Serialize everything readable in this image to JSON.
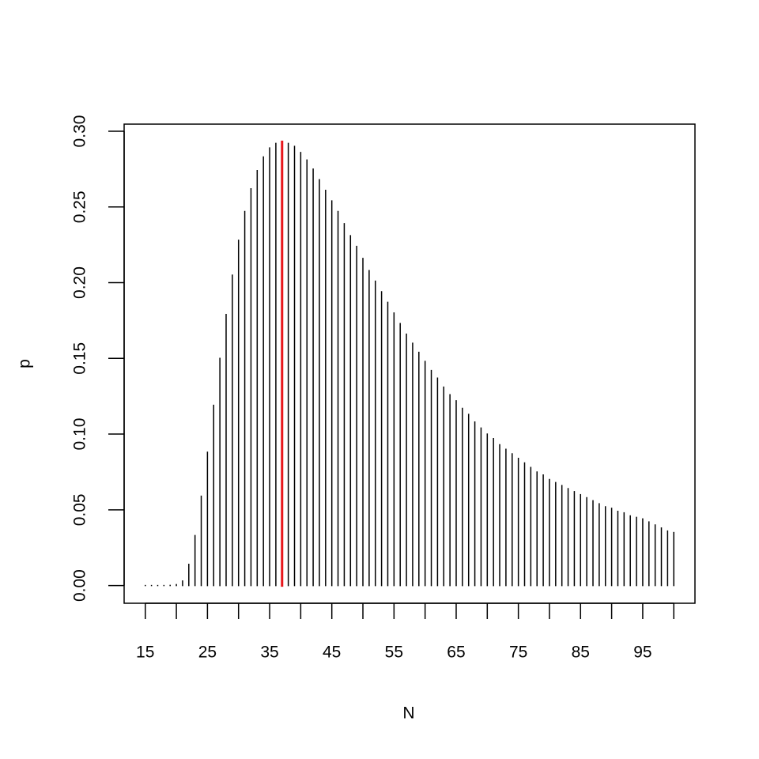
{
  "chart_data": {
    "type": "spike",
    "x_label": "N",
    "y_label": "p",
    "x": [
      15,
      16,
      17,
      18,
      19,
      20,
      21,
      22,
      23,
      24,
      25,
      26,
      27,
      28,
      29,
      30,
      31,
      32,
      33,
      34,
      35,
      36,
      37,
      38,
      39,
      40,
      41,
      42,
      43,
      44,
      45,
      46,
      47,
      48,
      49,
      50,
      51,
      52,
      53,
      54,
      55,
      56,
      57,
      58,
      59,
      60,
      61,
      62,
      63,
      64,
      65,
      66,
      67,
      68,
      69,
      70,
      71,
      72,
      73,
      74,
      75,
      76,
      77,
      78,
      79,
      80,
      81,
      82,
      83,
      84,
      85,
      86,
      87,
      88,
      89,
      90,
      91,
      92,
      93,
      94,
      95,
      96,
      97,
      98,
      99,
      100
    ],
    "values": [
      0,
      0,
      0,
      0,
      0.0001,
      0.0006,
      0.003,
      0.014,
      0.033,
      0.059,
      0.088,
      0.119,
      0.15,
      0.179,
      0.205,
      0.228,
      0.247,
      0.262,
      0.274,
      0.283,
      0.289,
      0.292,
      0.293,
      0.292,
      0.29,
      0.286,
      0.281,
      0.275,
      0.268,
      0.261,
      0.254,
      0.247,
      0.239,
      0.231,
      0.224,
      0.216,
      0.208,
      0.201,
      0.194,
      0.187,
      0.18,
      0.173,
      0.166,
      0.16,
      0.154,
      0.148,
      0.142,
      0.137,
      0.131,
      0.126,
      0.122,
      0.117,
      0.113,
      0.108,
      0.104,
      0.1,
      0.097,
      0.093,
      0.09,
      0.087,
      0.084,
      0.081,
      0.078,
      0.075,
      0.073,
      0.07,
      0.068,
      0.066,
      0.064,
      0.062,
      0.06,
      0.058,
      0.056,
      0.054,
      0.052,
      0.051,
      0.049,
      0.048,
      0.046,
      0.045,
      0.044,
      0.042,
      0.04,
      0.038,
      0.036,
      0.035
    ],
    "color": "#000000",
    "highlight_x": 37,
    "highlight_color": "#e8161b",
    "xlim": [
      11.6,
      103.4
    ],
    "xticks": [
      15,
      20,
      25,
      30,
      35,
      40,
      45,
      50,
      55,
      60,
      65,
      70,
      75,
      80,
      85,
      90,
      95,
      100
    ],
    "ylim": [
      -0.0117,
      0.3047
    ],
    "yticks": [
      {
        "value": 0,
        "label": "0.00"
      },
      {
        "value": 0.05,
        "label": "0.05"
      },
      {
        "value": 0.1,
        "label": "0.10"
      },
      {
        "value": 0.15,
        "label": "0.15"
      },
      {
        "value": 0.2,
        "label": "0.20"
      },
      {
        "value": 0.25,
        "label": "0.25"
      },
      {
        "value": 0.3,
        "label": "0.30"
      }
    ]
  }
}
